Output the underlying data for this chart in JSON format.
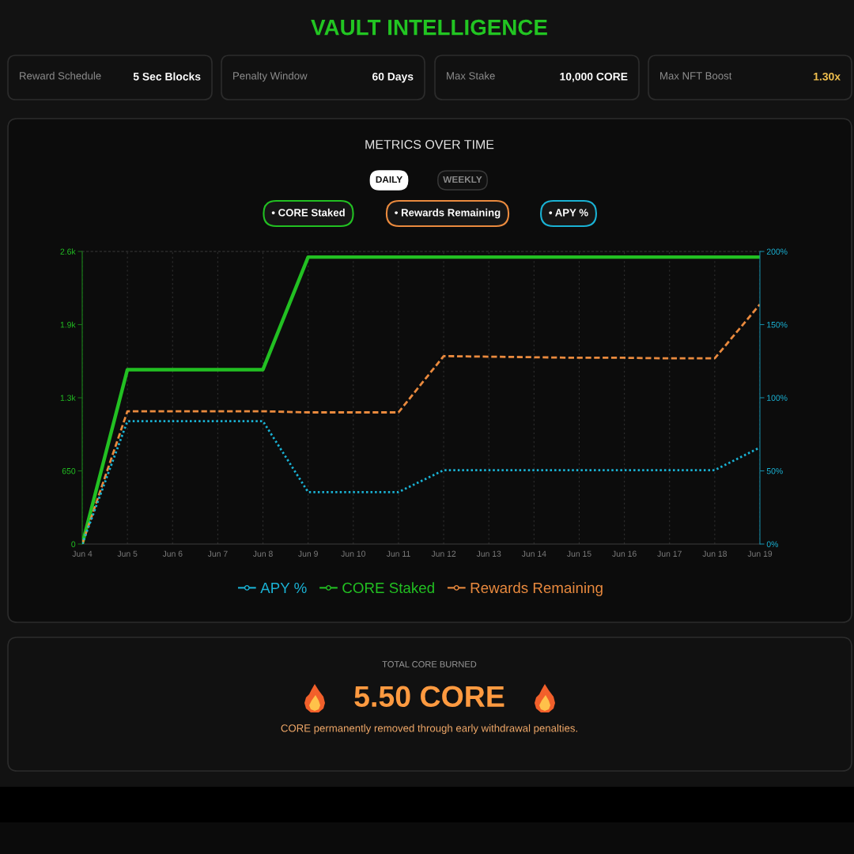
{
  "chart_data": [
    {
      "type": "other",
      "title": "VAULT INTELLIGENCE",
      "annotations": [
        "Reward Schedule",
        "5 Sec Blocks",
        "Penalty Window",
        "60 Days",
        "Max Stake",
        "10,000 CORE",
        "Max NFT Boost",
        "1.30x"
      ]
    },
    {
      "type": "line",
      "title": "METRICS OVER TIME",
      "annotations": [
        "DAILY",
        "WEEKLY",
        "• CORE Staked",
        "• Rewards Remaining",
        "• APY %"
      ],
      "categories": [
        "Jun 4",
        "Jun 5",
        "Jun 6",
        "Jun 7",
        "Jun 8",
        "Jun 9",
        "Jun 10",
        "Jun 11",
        "Jun 12",
        "Jun 13",
        "Jun 14",
        "Jun 15",
        "Jun 16",
        "Jun 17",
        "Jun 18",
        "Jun 19"
      ],
      "series": [
        {
          "name": "APY %",
          "color": "#1ab2d4",
          "axis": "y2",
          "line_style": "dotted",
          "values": [
            0,
            84,
            84,
            84,
            84,
            35.5,
            35.5,
            35.5,
            50.5,
            50.5,
            50.5,
            50.5,
            50.5,
            50.5,
            50.5,
            66
          ]
        },
        {
          "name": "CORE Staked",
          "color": "#22c022",
          "line_style": "solid",
          "values": [
            0,
            1550,
            1550,
            1550,
            1550,
            2550,
            2550,
            2550,
            2550,
            2550,
            2550,
            2550,
            2550,
            2550,
            2550,
            2550
          ]
        },
        {
          "name": "Rewards Remaining",
          "color": "#ea8a3e",
          "line_style": "dashed",
          "values": [
            0,
            1180,
            1180,
            1180,
            1180,
            1170,
            1170,
            1170,
            1670,
            1665,
            1660,
            1655,
            1655,
            1650,
            1650,
            2130
          ]
        }
      ],
      "ylim": [
        0,
        2600
      ],
      "yticks": [
        0,
        650,
        {
          "value": 1300,
          "label": "1.3k"
        },
        {
          "value": 1950,
          "label": "1.9k"
        },
        {
          "value": 2600,
          "label": "2.6k"
        }
      ],
      "y2lim": [
        0,
        200
      ],
      "y2ticks": [
        {
          "value": 0,
          "label": "0%"
        },
        {
          "value": 50,
          "label": "50%"
        },
        {
          "value": 100,
          "label": "100%"
        },
        {
          "value": 150,
          "label": "150%"
        },
        {
          "value": 200,
          "label": "200%"
        }
      ],
      "grid": "x",
      "legend": "bottom"
    },
    {
      "type": "other",
      "annotations": [
        "TOTAL CORE BURNED",
        "5.50 CORE",
        "CORE permanently removed through early withdrawal penalties."
      ]
    }
  ]
}
